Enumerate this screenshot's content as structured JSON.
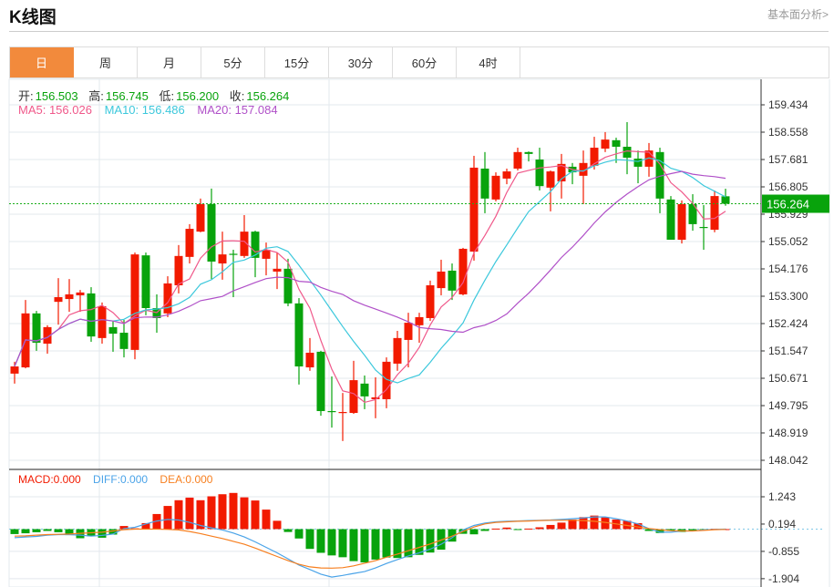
{
  "header": {
    "title": "K线图",
    "link": "基本面分析>"
  },
  "tabs": [
    {
      "label": "日",
      "active": true
    },
    {
      "label": "周"
    },
    {
      "label": "月"
    },
    {
      "label": "5分"
    },
    {
      "label": "15分"
    },
    {
      "label": "30分"
    },
    {
      "label": "60分"
    },
    {
      "label": "4时"
    }
  ],
  "ohlc_info": {
    "open_label": "开:",
    "open": "156.503",
    "high_label": "高:",
    "high": "156.745",
    "low_label": "低:",
    "low": "156.200",
    "close_label": "收:",
    "close": "156.264"
  },
  "ma_info": {
    "ma5": "MA5: 156.026",
    "ma10": "MA10: 156.486",
    "ma20": "MA20: 157.084"
  },
  "macd_info": {
    "macd": "MACD:0.000",
    "diff": "DIFF:0.000",
    "dea": "DEA:0.000"
  },
  "colors": {
    "up": "#f21a00",
    "down": "#08a30c",
    "ma5": "#f0588a",
    "ma10": "#3cc8dc",
    "ma20": "#b050c8",
    "diff": "#4aa3e8",
    "dea": "#f77f1f",
    "accent": "#f28a3c"
  },
  "chart_data": [
    {
      "type": "candlestick",
      "title": "K线图",
      "ylim": [
        148.042,
        159.434
      ],
      "yticks": [
        "159.434",
        "158.558",
        "157.681",
        "156.805",
        "155.929",
        "155.052",
        "154.176",
        "153.300",
        "152.424",
        "151.547",
        "150.671",
        "149.795",
        "148.919",
        "148.042"
      ],
      "last_price": "156.264",
      "ohlc": [
        [
          150.82,
          151.2,
          150.5,
          151.05
        ],
        [
          151.02,
          153.18,
          150.99,
          152.75
        ],
        [
          152.75,
          152.83,
          151.55,
          151.81
        ],
        [
          151.78,
          152.37,
          151.46,
          152.31
        ],
        [
          153.12,
          153.88,
          152.39,
          153.27
        ],
        [
          153.21,
          153.85,
          152.8,
          153.36
        ],
        [
          153.33,
          153.5,
          152.8,
          153.42
        ],
        [
          153.39,
          153.59,
          151.84,
          152.01
        ],
        [
          151.96,
          153.1,
          151.78,
          152.98
        ],
        [
          152.31,
          152.51,
          151.52,
          152.1
        ],
        [
          152.13,
          152.54,
          151.34,
          151.61
        ],
        [
          151.58,
          154.7,
          151.28,
          154.64
        ],
        [
          154.61,
          154.7,
          152.69,
          152.92
        ],
        [
          152.92,
          153.36,
          152.13,
          152.6
        ],
        [
          152.75,
          153.94,
          152.63,
          153.71
        ],
        [
          153.65,
          154.94,
          153.39,
          154.59
        ],
        [
          154.56,
          155.61,
          154.35,
          155.46
        ],
        [
          155.37,
          156.43,
          155.35,
          156.25
        ],
        [
          156.25,
          156.75,
          153.85,
          154.41
        ],
        [
          154.35,
          155.37,
          153.83,
          154.64
        ],
        [
          154.66,
          154.79,
          153.27,
          154.64
        ],
        [
          154.59,
          155.9,
          154.53,
          155.37
        ],
        [
          155.37,
          155.4,
          153.91,
          154.53
        ],
        [
          154.5,
          155.02,
          153.97,
          154.79
        ],
        [
          154.09,
          154.7,
          153.53,
          154.18
        ],
        [
          154.18,
          154.5,
          152.98,
          153.07
        ],
        [
          153.07,
          153.24,
          150.47,
          151.05
        ],
        [
          151.02,
          151.96,
          150.91,
          151.49
        ],
        [
          151.52,
          151.55,
          149.47,
          149.62
        ],
        [
          149.62,
          150.73,
          149.09,
          149.59
        ],
        [
          149.56,
          150.2,
          148.66,
          149.59
        ],
        [
          149.56,
          151.23,
          149.53,
          150.61
        ],
        [
          150.5,
          150.76,
          149.68,
          150.09
        ],
        [
          150.0,
          150.7,
          149.39,
          150.06
        ],
        [
          150.0,
          151.34,
          149.71,
          151.2
        ],
        [
          151.14,
          152.19,
          150.91,
          151.96
        ],
        [
          151.9,
          152.77,
          151.02,
          152.45
        ],
        [
          152.37,
          152.77,
          151.81,
          152.63
        ],
        [
          152.6,
          153.8,
          152.51,
          153.65
        ],
        [
          153.56,
          154.47,
          153.33,
          154.09
        ],
        [
          154.12,
          154.35,
          153.18,
          153.48
        ],
        [
          153.36,
          154.85,
          153.33,
          154.82
        ],
        [
          154.73,
          157.8,
          154.44,
          157.42
        ],
        [
          157.39,
          157.92,
          155.96,
          156.43
        ],
        [
          156.4,
          157.27,
          156.34,
          157.16
        ],
        [
          157.07,
          157.39,
          156.89,
          157.3
        ],
        [
          157.39,
          158.06,
          157.33,
          157.92
        ],
        [
          157.92,
          157.94,
          157.62,
          157.86
        ],
        [
          157.68,
          158.06,
          156.69,
          156.83
        ],
        [
          156.78,
          157.33,
          156.02,
          157.3
        ],
        [
          156.98,
          157.86,
          156.43,
          157.54
        ],
        [
          157.45,
          157.57,
          156.89,
          157.27
        ],
        [
          157.16,
          157.97,
          156.25,
          157.57
        ],
        [
          157.48,
          158.41,
          157.36,
          158.06
        ],
        [
          158.03,
          158.56,
          157.92,
          158.32
        ],
        [
          158.3,
          158.38,
          157.57,
          158.09
        ],
        [
          158.09,
          158.88,
          157.21,
          157.74
        ],
        [
          157.71,
          157.97,
          156.92,
          157.45
        ],
        [
          157.45,
          158.21,
          157.13,
          157.97
        ],
        [
          157.92,
          158.06,
          155.96,
          156.43
        ],
        [
          156.4,
          156.51,
          155.11,
          155.11
        ],
        [
          155.11,
          156.37,
          154.99,
          156.25
        ],
        [
          156.25,
          156.57,
          155.4,
          155.61
        ],
        [
          155.52,
          156.22,
          154.79,
          155.49
        ],
        [
          155.43,
          156.69,
          155.35,
          156.51
        ],
        [
          156.503,
          156.745,
          156.2,
          156.264
        ]
      ],
      "ma_periods": [
        5,
        10,
        20
      ]
    },
    {
      "type": "bar+line",
      "title": "MACD",
      "ylim": [
        -1.904,
        1.75
      ],
      "yticks": [
        "1.243",
        "0.194",
        "-0.855",
        "-1.904"
      ],
      "macd": [
        -0.19,
        -0.16,
        -0.12,
        -0.07,
        -0.12,
        -0.23,
        -0.35,
        -0.28,
        -0.33,
        -0.21,
        0.12,
        0.03,
        0.23,
        0.58,
        0.89,
        1.11,
        1.21,
        1.11,
        1.26,
        1.34,
        1.39,
        1.22,
        1.1,
        0.75,
        0.32,
        -0.11,
        -0.36,
        -0.76,
        -0.91,
        -1.01,
        -1.08,
        -1.23,
        -1.28,
        -1.17,
        -1.09,
        -1.11,
        -1.08,
        -0.99,
        -0.9,
        -0.79,
        -0.48,
        -0.18,
        -0.2,
        -0.07,
        0.02,
        0.06,
        -0.03,
        0.02,
        0.07,
        0.16,
        0.25,
        0.37,
        0.46,
        0.52,
        0.45,
        0.37,
        0.32,
        0.23,
        -0.07,
        -0.15,
        -0.07,
        -0.11,
        -0.07,
        -0.03,
        0.01,
        0.0
      ],
      "diff": [
        -0.33,
        -0.3,
        -0.28,
        -0.23,
        -0.21,
        -0.21,
        -0.23,
        -0.27,
        -0.24,
        -0.19,
        0.02,
        0.07,
        0.2,
        0.31,
        0.37,
        0.35,
        0.26,
        0.14,
        0.05,
        -0.03,
        -0.15,
        -0.3,
        -0.49,
        -0.7,
        -0.91,
        -1.14,
        -1.38,
        -1.55,
        -1.73,
        -1.84,
        -1.78,
        -1.7,
        -1.63,
        -1.49,
        -1.32,
        -1.17,
        -1.03,
        -0.91,
        -0.77,
        -0.58,
        -0.33,
        -0.03,
        0.14,
        0.23,
        0.28,
        0.3,
        0.31,
        0.33,
        0.34,
        0.35,
        0.37,
        0.4,
        0.43,
        0.47,
        0.47,
        0.4,
        0.31,
        0.2,
        0.02,
        -0.12,
        -0.12,
        -0.07,
        -0.07,
        -0.03,
        -0.01,
        0.0
      ],
      "dea": [
        -0.27,
        -0.26,
        -0.23,
        -0.21,
        -0.2,
        -0.19,
        -0.16,
        -0.14,
        -0.12,
        -0.07,
        -0.02,
        0,
        0,
        0,
        -0.01,
        -0.03,
        -0.09,
        -0.17,
        -0.27,
        -0.36,
        -0.47,
        -0.58,
        -0.73,
        -0.89,
        -1.05,
        -1.21,
        -1.35,
        -1.45,
        -1.49,
        -1.5,
        -1.48,
        -1.41,
        -1.31,
        -1.21,
        -1.08,
        -0.96,
        -0.83,
        -0.7,
        -0.57,
        -0.42,
        -0.27,
        -0.09,
        0.08,
        0.2,
        0.26,
        0.28,
        0.3,
        0.31,
        0.33,
        0.34,
        0.34,
        0.34,
        0.33,
        0.3,
        0.26,
        0.2,
        0.14,
        0.08,
        0.02,
        -0.02,
        -0.06,
        -0.07,
        -0.07,
        -0.05,
        -0.02,
        -0.01
      ]
    }
  ]
}
